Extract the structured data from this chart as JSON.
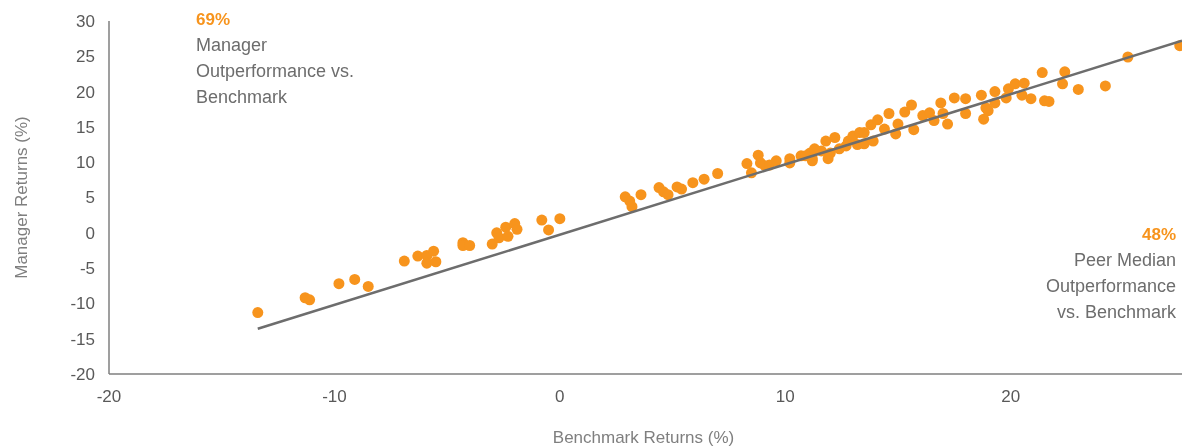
{
  "chart_data": {
    "type": "scatter",
    "xlabel": "Benchmark Returns (%)",
    "ylabel": "Manager Returns (%)",
    "xlim": [
      -20,
      27.6
    ],
    "ylim": [
      -20,
      30
    ],
    "xticks": [
      -20,
      -10,
      0,
      10,
      20
    ],
    "yticks": [
      -20,
      -15,
      -10,
      -5,
      0,
      5,
      10,
      15,
      20,
      25,
      30
    ],
    "grid": false,
    "annotations": [
      "69%",
      "Manager Outperformance vs. Benchmark",
      "48%",
      "Peer Median Outperformance vs. Benchmark"
    ],
    "series": [
      {
        "marker": "circle",
        "color": "#f7941d",
        "x": [
          -13.4,
          -11.3,
          -11.1,
          -9.8,
          -9.1,
          -8.5,
          -6.9,
          -6.3,
          -5.9,
          -5.6,
          -5.9,
          -5.5,
          -4.3,
          -4.3,
          -4.0,
          -3.0,
          -2.8,
          -2.7,
          -2.4,
          -2.3,
          -2.0,
          -1.9,
          -0.8,
          -0.5,
          0,
          2.9,
          3.2,
          3.1,
          3.6,
          4.4,
          4.6,
          4.8,
          5.2,
          5.4,
          5.9,
          6.4,
          7.0,
          8.3,
          8.5,
          8.8,
          8.9,
          9.1,
          9.3,
          9.6,
          10.2,
          10.7,
          11.1,
          11.6,
          11.2,
          11.8,
          11.9,
          10.9,
          11.3,
          12.0,
          12.4,
          12.7,
          12.2,
          12.8,
          13.0,
          13.2,
          13.3,
          11.2,
          10.2,
          13.5,
          13.5,
          13.9,
          13.8,
          14.1,
          14.4,
          14.9,
          15.7,
          15.0,
          14.6,
          15.3,
          15.6,
          16.6,
          16.1,
          16.4,
          17.0,
          16.9,
          17.2,
          17.5,
          18.0,
          18.0,
          18.9,
          18.7,
          18.8,
          19.0,
          19.3,
          19.3,
          19.8,
          19.9,
          20.5,
          20.2,
          20.6,
          20.9,
          21.7,
          21.5,
          21.4,
          22.3,
          22.4,
          23.0,
          24.2,
          25.2,
          27.5
        ],
        "values": [
          -11.3,
          -9.2,
          -9.5,
          -7.2,
          -6.6,
          -7.6,
          -4.0,
          -3.3,
          -3.2,
          -2.6,
          -4.3,
          -4.1,
          -1.4,
          -1.8,
          -1.8,
          -1.6,
          0,
          -0.7,
          0.8,
          -0.5,
          1.3,
          0.5,
          1.8,
          0.4,
          2.0,
          5.1,
          3.7,
          4.5,
          5.4,
          6.4,
          5.8,
          5.4,
          6.5,
          6.2,
          7.1,
          7.6,
          8.4,
          9.8,
          8.5,
          11.0,
          9.9,
          9.5,
          9.6,
          10.2,
          10.5,
          10.9,
          11.3,
          11.6,
          10.5,
          13.0,
          10.5,
          10.9,
          11.9,
          11.3,
          11.9,
          12.3,
          13.5,
          13.0,
          13.7,
          12.5,
          14.2,
          10.2,
          9.9,
          12.6,
          14.2,
          13.0,
          15.3,
          16.0,
          14.7,
          14.0,
          14.6,
          15.4,
          16.9,
          17.1,
          18.1,
          15.9,
          16.6,
          17.0,
          16.9,
          18.4,
          15.4,
          19.1,
          16.9,
          19.0,
          17.7,
          19.5,
          16.1,
          17.3,
          18.4,
          20.0,
          19.1,
          20.4,
          19.5,
          21.1,
          21.2,
          19.0,
          18.6,
          18.7,
          22.7,
          21.1,
          22.8,
          20.3,
          20.8,
          24.9,
          26.5
        ]
      },
      {
        "type": "line",
        "color": "#6d6d6d",
        "x": [
          -13.4,
          27.6
        ],
        "values": [
          -13.6,
          27.2
        ]
      }
    ]
  }
}
